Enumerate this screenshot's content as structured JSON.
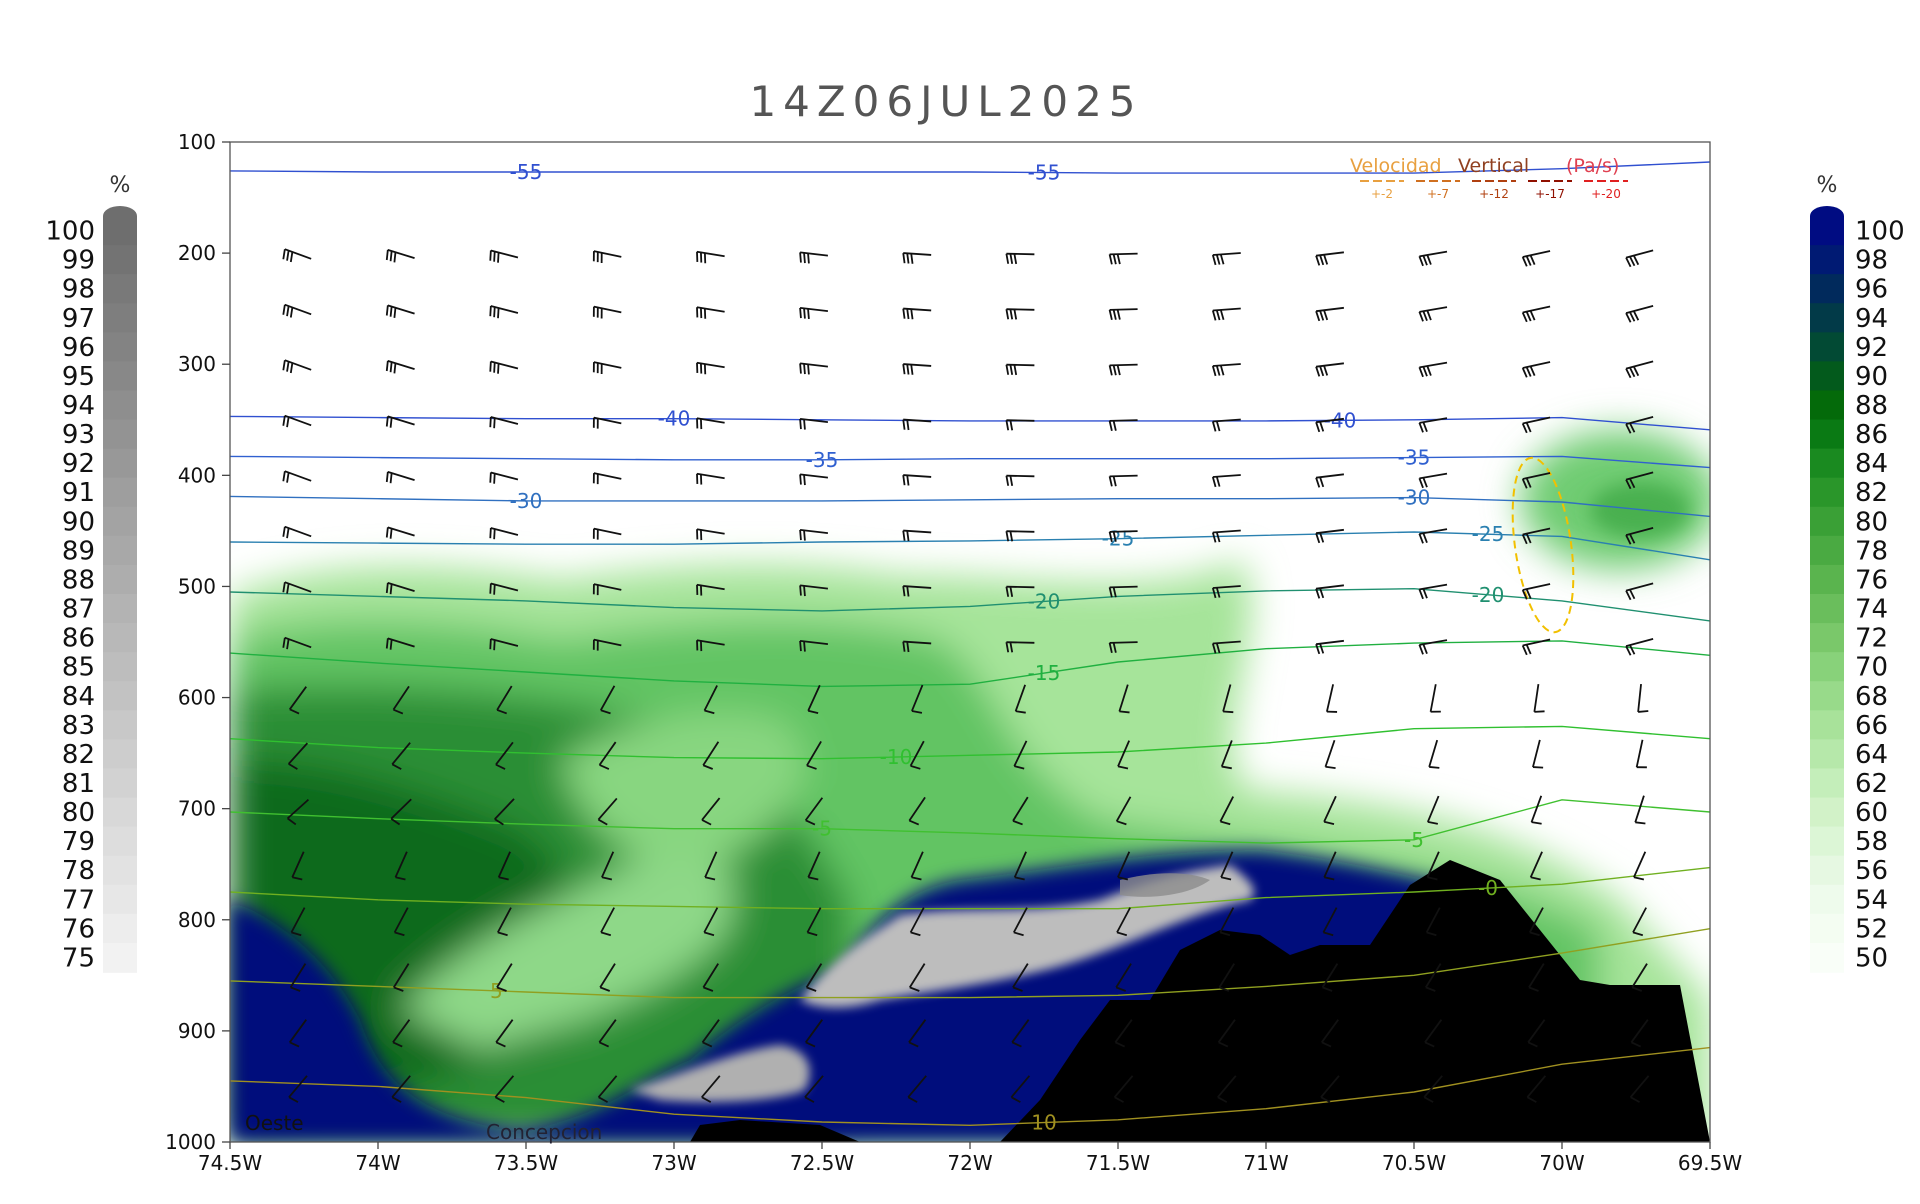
{
  "chart_data": {
    "type": "cross-section",
    "title": "14Z06JUL2025",
    "x_axis": {
      "ticks": [
        "74.5W",
        "74W",
        "73.5W",
        "73W",
        "72.5W",
        "72W",
        "71.5W",
        "71W",
        "70.5W",
        "70W",
        "69.5W"
      ],
      "range": [
        -74.5,
        -69.5
      ]
    },
    "y_axis": {
      "ticks": [
        "100",
        "200",
        "300",
        "400",
        "500",
        "600",
        "700",
        "800",
        "900",
        "1000"
      ],
      "range": [
        100,
        1000
      ],
      "inverted": true
    },
    "left_colorbar": {
      "unit": "%",
      "levels": [
        "100",
        "99",
        "98",
        "97",
        "96",
        "95",
        "94",
        "93",
        "92",
        "91",
        "90",
        "89",
        "88",
        "87",
        "86",
        "85",
        "84",
        "83",
        "82",
        "81",
        "80",
        "79",
        "78",
        "77",
        "76",
        "75"
      ],
      "color_high": "#6e6e6e",
      "color_low": "#f2f2f2"
    },
    "right_colorbar": {
      "unit": "%",
      "levels": [
        "100",
        "98",
        "96",
        "94",
        "92",
        "90",
        "88",
        "86",
        "84",
        "82",
        "80",
        "78",
        "76",
        "74",
        "72",
        "70",
        "68",
        "66",
        "64",
        "62",
        "60",
        "58",
        "56",
        "54",
        "52",
        "50"
      ],
      "colors": [
        "#000c82",
        "#001a73",
        "#012a5c",
        "#023a48",
        "#024a34",
        "#035a1c",
        "#046a0a",
        "#0a7a14",
        "#1a8a20",
        "#2a962a",
        "#3aa036",
        "#4aaa42",
        "#5ab44e",
        "#6abe5c",
        "#7ac86a",
        "#88d27a",
        "#98da8a",
        "#a8e29a",
        "#b6e8aa",
        "#c4eeba",
        "#d2f2c8",
        "#dcf6d6",
        "#e6f8e2",
        "#eefbec",
        "#f4fdf2",
        "#f9fef8"
      ]
    },
    "legend": {
      "title_part1": "Velocidad",
      "title_part2": "Vertical",
      "unit": "(Pa/s)",
      "values": [
        "+-2",
        "+-7",
        "+-12",
        "+-17",
        "+-20"
      ],
      "colors": [
        "#e8a040",
        "#d07020",
        "#b04010",
        "#901000",
        "#e02020"
      ]
    },
    "temperature_contours": [
      {
        "value": -55,
        "label": "-55",
        "color": "#3050d0"
      },
      {
        "value": -40,
        "label": "-40",
        "color": "#3050d0"
      },
      {
        "value": -35,
        "label": "-35",
        "color": "#3060d0"
      },
      {
        "value": -30,
        "label": "-30",
        "color": "#3070c0"
      },
      {
        "value": -25,
        "label": "-25",
        "color": "#2a80b0"
      },
      {
        "value": -20,
        "label": "-20",
        "color": "#209070"
      },
      {
        "value": -15,
        "label": "-15",
        "color": "#20b040"
      },
      {
        "value": -10,
        "label": "-10",
        "color": "#30c030"
      },
      {
        "value": -5,
        "label": "-5",
        "color": "#40c030"
      },
      {
        "value": 0,
        "label": "-0",
        "color": "#70b020"
      },
      {
        "value": 5,
        "label": "5",
        "color": "#90a020"
      },
      {
        "value": 10,
        "label": "10",
        "color": "#a09020"
      }
    ],
    "annotations": {
      "west": "Oeste",
      "city": "Concepcion"
    }
  }
}
